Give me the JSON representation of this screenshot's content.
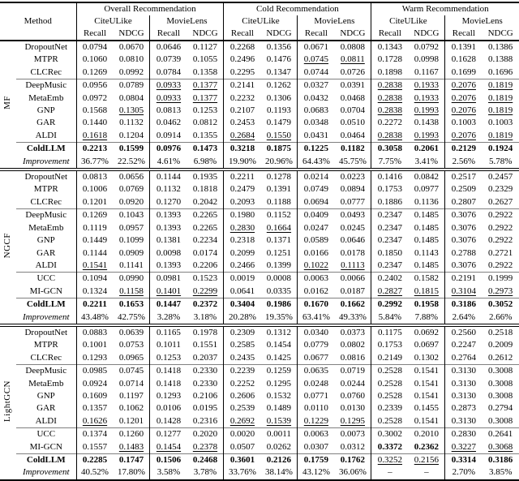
{
  "table": {
    "method_header": "Method",
    "sections": [
      "Overall Recommendation",
      "Cold Recommendation",
      "Warm Recommendation"
    ],
    "datasets": [
      "CiteULike",
      "MovieLens",
      "CiteULike",
      "MovieLens",
      "CiteULike",
      "MovieLens"
    ],
    "metrics": [
      "Recall",
      "NDCG",
      "Recall",
      "NDCG",
      "Recall",
      "NDCG",
      "Recall",
      "NDCG",
      "Recall",
      "NDCG",
      "Recall",
      "NDCG"
    ],
    "groups": [
      {
        "label": "MF",
        "subgroups": [
          [
            {
              "method": "DropoutNet",
              "style": "plain",
              "values": [
                "0.0794",
                "0.0670",
                "0.0646",
                "0.1127",
                "0.2268",
                "0.1356",
                "0.0671",
                "0.0808",
                "0.1343",
                "0.0792",
                "0.1391",
                "0.1386"
              ],
              "fmt": "............"
            },
            {
              "method": "MTPR",
              "style": "plain",
              "values": [
                "0.1060",
                "0.0810",
                "0.0739",
                "0.1055",
                "0.2496",
                "0.1476",
                "0.0745",
                "0.0811",
                "0.1728",
                "0.0998",
                "0.1628",
                "0.1388"
              ],
              "fmt": "......uu...."
            },
            {
              "method": "CLCRec",
              "style": "plain",
              "values": [
                "0.1269",
                "0.0992",
                "0.0784",
                "0.1358",
                "0.2295",
                "0.1347",
                "0.0744",
                "0.0726",
                "0.1898",
                "0.1167",
                "0.1699",
                "0.1696"
              ],
              "fmt": "............"
            }
          ],
          [
            {
              "method": "DeepMusic",
              "style": "plain",
              "values": [
                "0.0956",
                "0.0789",
                "0.0933",
                "0.1377",
                "0.2141",
                "0.1262",
                "0.0327",
                "0.0391",
                "0.2838",
                "0.1933",
                "0.2076",
                "0.1819"
              ],
              "fmt": "..uu....uuuu"
            },
            {
              "method": "MetaEmb",
              "style": "plain",
              "values": [
                "0.0972",
                "0.0804",
                "0.0933",
                "0.1377",
                "0.2232",
                "0.1306",
                "0.0432",
                "0.0468",
                "0.2838",
                "0.1933",
                "0.2076",
                "0.1819"
              ],
              "fmt": "..uu....uuuu"
            },
            {
              "method": "GNP",
              "style": "plain",
              "values": [
                "0.1568",
                "0.1305",
                "0.0813",
                "0.1253",
                "0.2107",
                "0.1193",
                "0.0683",
                "0.0704",
                "0.2838",
                "0.1993",
                "0.2076",
                "0.1819"
              ],
              "fmt": ".u......uuuu"
            },
            {
              "method": "GAR",
              "style": "plain",
              "values": [
                "0.1440",
                "0.1132",
                "0.0462",
                "0.0812",
                "0.2453",
                "0.1479",
                "0.0348",
                "0.0510",
                "0.2272",
                "0.1438",
                "0.1003",
                "0.1003"
              ],
              "fmt": "............"
            },
            {
              "method": "ALDI",
              "style": "plain",
              "values": [
                "0.1618",
                "0.1204",
                "0.0914",
                "0.1355",
                "0.2684",
                "0.1550",
                "0.0431",
                "0.0464",
                "0.2838",
                "0.1993",
                "0.2076",
                "0.1819"
              ],
              "fmt": "u...uu..uuuu"
            }
          ],
          [
            {
              "method": "ColdLLM",
              "style": "bold",
              "values": [
                "0.2213",
                "0.1599",
                "0.0976",
                "0.1473",
                "0.3218",
                "0.1875",
                "0.1225",
                "0.1182",
                "0.3058",
                "0.2061",
                "0.2129",
                "0.1924"
              ],
              "fmt": "bbbbbbbbbbbb"
            },
            {
              "method": "Improvement",
              "style": "italic",
              "values": [
                "36.77%",
                "22.52%",
                "4.61%",
                "6.98%",
                "19.90%",
                "20.96%",
                "64.43%",
                "45.75%",
                "7.75%",
                "3.41%",
                "2.56%",
                "5.78%"
              ],
              "fmt": "............"
            }
          ]
        ]
      },
      {
        "label": "NGCF",
        "subgroups": [
          [
            {
              "method": "DropoutNet",
              "style": "plain",
              "values": [
                "0.0813",
                "0.0656",
                "0.1144",
                "0.1935",
                "0.2211",
                "0.1278",
                "0.0214",
                "0.0223",
                "0.1416",
                "0.0842",
                "0.2517",
                "0.2457"
              ],
              "fmt": "............"
            },
            {
              "method": "MTPR",
              "style": "plain",
              "values": [
                "0.1006",
                "0.0769",
                "0.1132",
                "0.1818",
                "0.2479",
                "0.1391",
                "0.0749",
                "0.0894",
                "0.1753",
                "0.0977",
                "0.2509",
                "0.2329"
              ],
              "fmt": "............"
            },
            {
              "method": "CLCRec",
              "style": "plain",
              "values": [
                "0.1201",
                "0.0920",
                "0.1270",
                "0.2042",
                "0.2093",
                "0.1188",
                "0.0694",
                "0.0777",
                "0.1886",
                "0.1136",
                "0.2807",
                "0.2627"
              ],
              "fmt": "............"
            }
          ],
          [
            {
              "method": "DeepMusic",
              "style": "plain",
              "values": [
                "0.1269",
                "0.1043",
                "0.1393",
                "0.2265",
                "0.1980",
                "0.1152",
                "0.0409",
                "0.0493",
                "0.2347",
                "0.1485",
                "0.3076",
                "0.2922"
              ],
              "fmt": "............"
            },
            {
              "method": "MetaEmb",
              "style": "plain",
              "values": [
                "0.1119",
                "0.0957",
                "0.1393",
                "0.2265",
                "0.2830",
                "0.1664",
                "0.0247",
                "0.0245",
                "0.2347",
                "0.1485",
                "0.3076",
                "0.2922"
              ],
              "fmt": "....uu......"
            },
            {
              "method": "GNP",
              "style": "plain",
              "values": [
                "0.1449",
                "0.1099",
                "0.1381",
                "0.2234",
                "0.2318",
                "0.1371",
                "0.0589",
                "0.0646",
                "0.2347",
                "0.1485",
                "0.3076",
                "0.2922"
              ],
              "fmt": "............"
            },
            {
              "method": "GAR",
              "style": "plain",
              "values": [
                "0.1144",
                "0.0909",
                "0.0098",
                "0.0174",
                "0.2099",
                "0.1251",
                "0.0166",
                "0.0178",
                "0.1850",
                "0.1143",
                "0.2788",
                "0.2721"
              ],
              "fmt": "............"
            },
            {
              "method": "ALDI",
              "style": "plain",
              "values": [
                "0.1541",
                "0.1141",
                "0.1393",
                "0.2206",
                "0.2466",
                "0.1399",
                "0.1022",
                "0.1113",
                "0.2347",
                "0.1485",
                "0.3076",
                "0.2922"
              ],
              "fmt": "u.....uu...."
            }
          ],
          [
            {
              "method": "UCC",
              "style": "plain",
              "values": [
                "0.1094",
                "0.0990",
                "0.0981",
                "0.1523",
                "0.0019",
                "0.0008",
                "0.0063",
                "0.0066",
                "0.2402",
                "0.1582",
                "0.2191",
                "0.1999"
              ],
              "fmt": "............"
            },
            {
              "method": "MI-GCN",
              "style": "plain",
              "values": [
                "0.1324",
                "0.1158",
                "0.1401",
                "0.2299",
                "0.0641",
                "0.0335",
                "0.0162",
                "0.0187",
                "0.2827",
                "0.1815",
                "0.3104",
                "0.2973"
              ],
              "fmt": ".uuu....uuuu"
            }
          ],
          [
            {
              "method": "ColdLLM",
              "style": "bold",
              "values": [
                "0.2211",
                "0.1653",
                "0.1447",
                "0.2372",
                "0.3404",
                "0.1986",
                "0.1670",
                "0.1662",
                "0.2992",
                "0.1958",
                "0.3186",
                "0.3052"
              ],
              "fmt": "bbbbbbbbbbbb"
            },
            {
              "method": "Improvement",
              "style": "italic",
              "values": [
                "43.48%",
                "42.75%",
                "3.28%",
                "3.18%",
                "20.28%",
                "19.35%",
                "63.41%",
                "49.33%",
                "5.84%",
                "7.88%",
                "2.64%",
                "2.66%"
              ],
              "fmt": "............"
            }
          ]
        ]
      },
      {
        "label": "LightGCN",
        "subgroups": [
          [
            {
              "method": "DropoutNet",
              "style": "plain",
              "values": [
                "0.0883",
                "0.0639",
                "0.1165",
                "0.1978",
                "0.2309",
                "0.1312",
                "0.0340",
                "0.0373",
                "0.1175",
                "0.0692",
                "0.2560",
                "0.2518"
              ],
              "fmt": "............"
            },
            {
              "method": "MTPR",
              "style": "plain",
              "values": [
                "0.1001",
                "0.0753",
                "0.1011",
                "0.1551",
                "0.2585",
                "0.1454",
                "0.0779",
                "0.0802",
                "0.1753",
                "0.0697",
                "0.2247",
                "0.2009"
              ],
              "fmt": "............"
            },
            {
              "method": "CLCRec",
              "style": "plain",
              "values": [
                "0.1293",
                "0.0965",
                "0.1253",
                "0.2037",
                "0.2435",
                "0.1425",
                "0.0677",
                "0.0816",
                "0.2149",
                "0.1302",
                "0.2764",
                "0.2612"
              ],
              "fmt": "............"
            }
          ],
          [
            {
              "method": "DeepMusic",
              "style": "plain",
              "values": [
                "0.0985",
                "0.0745",
                "0.1418",
                "0.2330",
                "0.2239",
                "0.1259",
                "0.0635",
                "0.0719",
                "0.2528",
                "0.1541",
                "0.3130",
                "0.3008"
              ],
              "fmt": "............"
            },
            {
              "method": "MetaEmb",
              "style": "plain",
              "values": [
                "0.0924",
                "0.0714",
                "0.1418",
                "0.2330",
                "0.2252",
                "0.1295",
                "0.0248",
                "0.0244",
                "0.2528",
                "0.1541",
                "0.3130",
                "0.3008"
              ],
              "fmt": "............"
            },
            {
              "method": "GNP",
              "style": "plain",
              "values": [
                "0.1609",
                "0.1197",
                "0.1293",
                "0.2106",
                "0.2606",
                "0.1532",
                "0.0771",
                "0.0760",
                "0.2528",
                "0.1541",
                "0.3130",
                "0.3008"
              ],
              "fmt": "............"
            },
            {
              "method": "GAR",
              "style": "plain",
              "values": [
                "0.1357",
                "0.1062",
                "0.0106",
                "0.0195",
                "0.2539",
                "0.1489",
                "0.0110",
                "0.0130",
                "0.2339",
                "0.1455",
                "0.2873",
                "0.2794"
              ],
              "fmt": "............"
            },
            {
              "method": "ALDI",
              "style": "plain",
              "values": [
                "0.1626",
                "0.1201",
                "0.1428",
                "0.2316",
                "0.2692",
                "0.1539",
                "0.1229",
                "0.1295",
                "0.2528",
                "0.1541",
                "0.3130",
                "0.3008"
              ],
              "fmt": "u...uuuu...."
            }
          ],
          [
            {
              "method": "UCC",
              "style": "plain",
              "values": [
                "0.1374",
                "0.1260",
                "0.1277",
                "0.2020",
                "0.0020",
                "0.0011",
                "0.0063",
                "0.0073",
                "0.3002",
                "0.2010",
                "0.2830",
                "0.2641"
              ],
              "fmt": "............"
            },
            {
              "method": "MI-GCN",
              "style": "plain",
              "values": [
                "0.1557",
                "0.1483",
                "0.1454",
                "0.2378",
                "0.0507",
                "0.0262",
                "0.0307",
                "0.0312",
                "0.3372",
                "0.2362",
                "0.3227",
                "0.3068"
              ],
              "fmt": ".uuu....bbuu"
            }
          ],
          [
            {
              "method": "ColdLLM",
              "style": "bold",
              "values": [
                "0.2285",
                "0.1747",
                "0.1506",
                "0.2468",
                "0.3601",
                "0.2126",
                "0.1759",
                "0.1762",
                "0.3252",
                "0.2156",
                "0.3314",
                "0.3186"
              ],
              "fmt": "bbbbbbbbuubb"
            },
            {
              "method": "Improvement",
              "style": "italic",
              "values": [
                "40.52%",
                "17.80%",
                "3.58%",
                "3.78%",
                "33.76%",
                "38.14%",
                "43.12%",
                "36.06%",
                "–",
                "–",
                "2.70%",
                "3.85%"
              ],
              "fmt": "............"
            }
          ]
        ]
      }
    ]
  }
}
